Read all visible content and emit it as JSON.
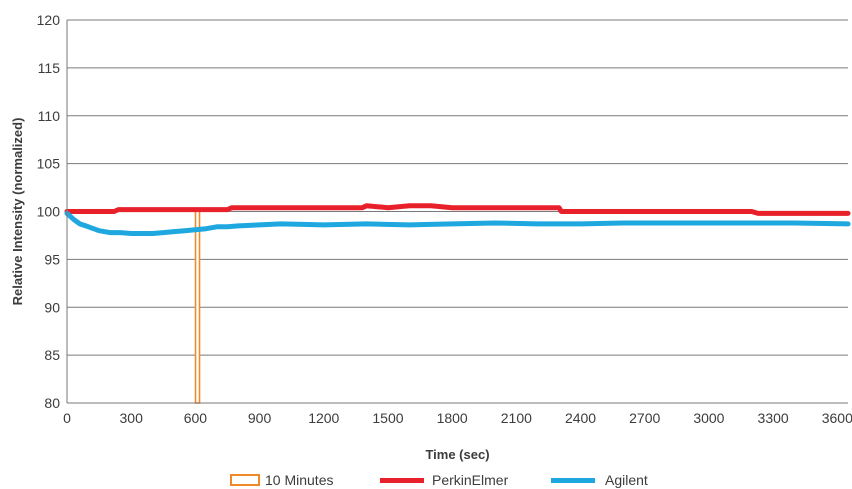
{
  "chart_data": {
    "type": "line",
    "title": "",
    "xlabel": "Time (sec)",
    "ylabel": "Relative Intensity (normalized)",
    "xlim": [
      0,
      3650
    ],
    "ylim": [
      80,
      120
    ],
    "x_ticks": [
      0,
      300,
      600,
      900,
      1200,
      1500,
      1800,
      2100,
      2400,
      2700,
      3000,
      3300,
      3600
    ],
    "y_ticks": [
      80,
      85,
      90,
      95,
      100,
      105,
      110,
      115,
      120
    ],
    "grid": "horizontal",
    "legend_position": "bottom",
    "markers": [
      {
        "name": "10 Minutes",
        "x": 610,
        "color": "#f0892a"
      }
    ],
    "series": [
      {
        "name": "PerkinElmer",
        "color": "#e8202a",
        "points": [
          [
            0,
            100.0
          ],
          [
            100,
            100.0
          ],
          [
            220,
            100.0
          ],
          [
            240,
            100.2
          ],
          [
            400,
            100.2
          ],
          [
            550,
            100.2
          ],
          [
            750,
            100.2
          ],
          [
            770,
            100.4
          ],
          [
            900,
            100.4
          ],
          [
            1050,
            100.4
          ],
          [
            1200,
            100.4
          ],
          [
            1380,
            100.4
          ],
          [
            1400,
            100.6
          ],
          [
            1450,
            100.5
          ],
          [
            1500,
            100.4
          ],
          [
            1600,
            100.6
          ],
          [
            1700,
            100.6
          ],
          [
            1800,
            100.4
          ],
          [
            2000,
            100.4
          ],
          [
            2200,
            100.4
          ],
          [
            2300,
            100.4
          ],
          [
            2310,
            100.0
          ],
          [
            2500,
            100.0
          ],
          [
            2700,
            100.0
          ],
          [
            3000,
            100.0
          ],
          [
            3200,
            100.0
          ],
          [
            3230,
            99.8
          ],
          [
            3400,
            99.8
          ],
          [
            3650,
            99.8
          ]
        ]
      },
      {
        "name": "Agilent",
        "color": "#1ea8df",
        "points": [
          [
            0,
            99.8
          ],
          [
            30,
            99.2
          ],
          [
            60,
            98.7
          ],
          [
            100,
            98.4
          ],
          [
            150,
            98.0
          ],
          [
            200,
            97.8
          ],
          [
            250,
            97.8
          ],
          [
            300,
            97.7
          ],
          [
            350,
            97.7
          ],
          [
            400,
            97.7
          ],
          [
            450,
            97.8
          ],
          [
            500,
            97.9
          ],
          [
            550,
            98.0
          ],
          [
            600,
            98.1
          ],
          [
            650,
            98.2
          ],
          [
            700,
            98.4
          ],
          [
            750,
            98.4
          ],
          [
            800,
            98.5
          ],
          [
            900,
            98.6
          ],
          [
            1000,
            98.7
          ],
          [
            1200,
            98.6
          ],
          [
            1400,
            98.7
          ],
          [
            1600,
            98.6
          ],
          [
            1800,
            98.7
          ],
          [
            2000,
            98.8
          ],
          [
            2200,
            98.7
          ],
          [
            2400,
            98.7
          ],
          [
            2600,
            98.8
          ],
          [
            2800,
            98.8
          ],
          [
            3000,
            98.8
          ],
          [
            3200,
            98.8
          ],
          [
            3400,
            98.8
          ],
          [
            3650,
            98.7
          ]
        ]
      }
    ]
  }
}
